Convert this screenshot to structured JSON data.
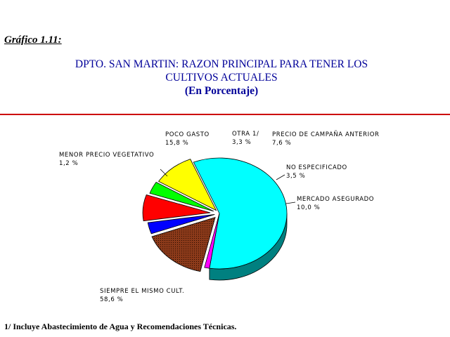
{
  "figure_label": "Gráfico 1.11:",
  "title_line1": "DPTO. SAN MARTIN: RAZON PRINCIPAL PARA TENER LOS",
  "title_line2": "CULTIVOS ACTUALES",
  "subtitle": "(En Porcentaje)",
  "footnote": "1/ Incluye Abastecimiento de Agua y Recomendaciones Técnicas.",
  "colors": {
    "title": "#000099",
    "divider": "#cc0000",
    "siempre_side": "#008080",
    "outline": "#000000"
  },
  "chart_data": {
    "type": "pie",
    "style": "3d-exploded",
    "slices": [
      {
        "label": "SIEMPRE EL MISMO CULT.",
        "value": 58.6,
        "value_text": "58,6 %",
        "color": "#00ffff"
      },
      {
        "label": "MENOR PRECIO VEGETATIVO",
        "value": 1.2,
        "value_text": "1,2 %",
        "color": "#ff00ff"
      },
      {
        "label": "POCO GASTO",
        "value": 15.8,
        "value_text": "15,8 %",
        "color": "#8b3a1a"
      },
      {
        "label": "OTRA 1/",
        "value": 3.3,
        "value_text": "3,3 %",
        "color": "#0000ff"
      },
      {
        "label": "PRECIO DE CAMPAÑA ANTERIOR",
        "value": 7.6,
        "value_text": "7,6 %",
        "color": "#ff0000"
      },
      {
        "label": "NO ESPECIFICADO",
        "value": 3.5,
        "value_text": "3,5 %",
        "color": "#00ff00"
      },
      {
        "label": "MERCADO ASEGURADO",
        "value": 10.0,
        "value_text": "10,0 %",
        "color": "#ffff00"
      }
    ]
  }
}
